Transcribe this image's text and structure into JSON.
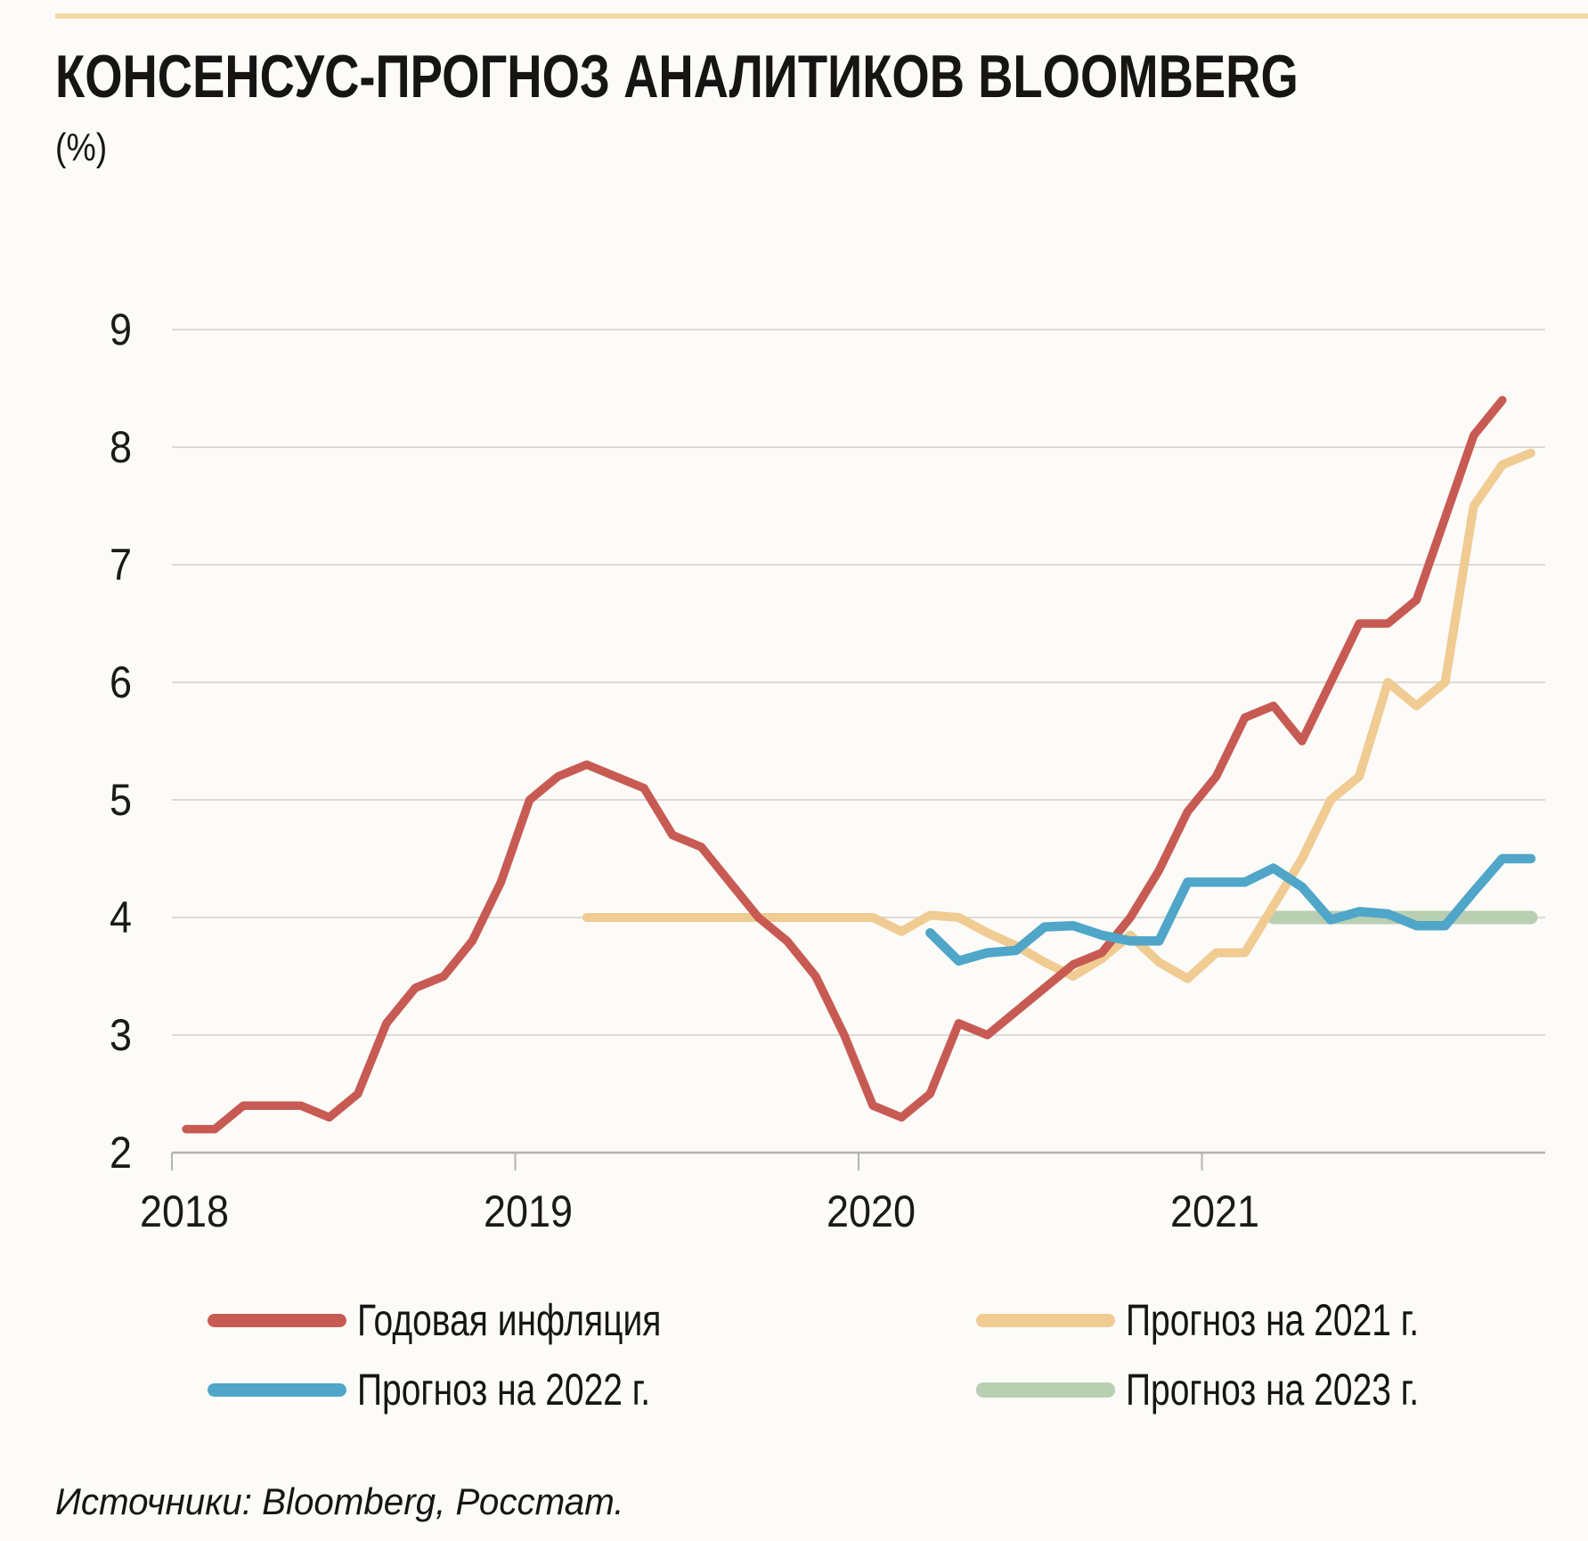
{
  "header": {
    "title": "КОНСЕНСУС-ПРОГНОЗ АНАЛИТИКОВ BLOOMBERG",
    "unit_label": "(%)",
    "accent_color": "#f6d8a6"
  },
  "chart_data": {
    "type": "line",
    "title": "КОНСЕНСУС-ПРОГНОЗ АНАЛИТИКОВ BLOOMBERG",
    "ylabel": "(%)",
    "frequency": "monthly",
    "x_start_label": "2018-01",
    "x_tick_labels": [
      "2018",
      "2019",
      "2020",
      "2021"
    ],
    "y_ticks": [
      9,
      8,
      7,
      6,
      5,
      4,
      3,
      2
    ],
    "ylim": [
      2,
      9
    ],
    "grid": "horizontal",
    "legend_position": "bottom",
    "gridline_color": "#dbdad6",
    "axis_color": "#b5b3af",
    "draw_order": [
      3,
      1,
      0,
      2
    ],
    "series": [
      {
        "id": "annual-inflation",
        "name": "Годовая инфляция",
        "color": "#c75b53",
        "stroke_width": 9.5,
        "start_month_index": 0,
        "start_label": "2018-01",
        "values": [
          2.2,
          2.2,
          2.4,
          2.4,
          2.4,
          2.3,
          2.5,
          3.1,
          3.4,
          3.5,
          3.8,
          4.3,
          5.0,
          5.2,
          5.3,
          5.2,
          5.1,
          4.7,
          4.6,
          4.3,
          4.0,
          3.8,
          3.5,
          3.0,
          2.4,
          2.3,
          2.5,
          3.1,
          3.0,
          3.2,
          3.4,
          3.6,
          3.7,
          4.0,
          4.4,
          4.9,
          5.2,
          5.7,
          5.8,
          5.5,
          6.0,
          6.5,
          6.5,
          6.7,
          7.4,
          8.1,
          8.4
        ]
      },
      {
        "id": "forecast-2021",
        "name": "Прогноз на 2021 г.",
        "color": "#f0cb92",
        "stroke_width": 10,
        "start_month_index": 14,
        "start_label": "2019-03",
        "values": [
          4.0,
          4.0,
          4.0,
          4.0,
          4.0,
          4.0,
          4.0,
          4.0,
          4.0,
          4.0,
          4.0,
          3.88,
          4.02,
          4.0,
          3.87,
          3.76,
          3.62,
          3.5,
          3.65,
          3.85,
          3.62,
          3.48,
          3.7,
          3.7,
          4.1,
          4.5,
          5.0,
          5.2,
          6.0,
          5.8,
          6.0,
          7.5,
          7.85,
          7.95
        ]
      },
      {
        "id": "forecast-2022",
        "name": "Прогноз на 2022 г.",
        "color": "#4fa6c9",
        "stroke_width": 10.5,
        "start_month_index": 26,
        "start_label": "2020-03",
        "values": [
          3.87,
          3.63,
          3.7,
          3.72,
          3.92,
          3.93,
          3.85,
          3.8,
          3.8,
          4.3,
          4.3,
          4.3,
          4.42,
          4.26,
          3.98,
          4.05,
          4.03,
          3.93,
          3.93,
          4.22,
          4.5,
          4.5
        ]
      },
      {
        "id": "forecast-2023",
        "name": "Прогноз на 2023 г.",
        "color": "#b9cfb2",
        "stroke_width": 15,
        "start_month_index": 38,
        "start_label": "2021-03",
        "values": [
          4.0,
          4.0,
          4.0,
          4.0,
          4.0,
          4.0,
          4.0,
          4.0,
          4.0,
          4.0
        ]
      }
    ]
  },
  "source": {
    "text": "Источники: Bloomberg, Росстат."
  }
}
